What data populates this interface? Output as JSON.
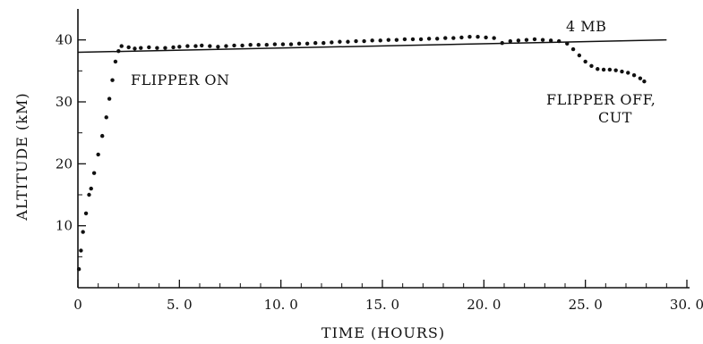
{
  "chart_data": {
    "type": "scatter",
    "title": "",
    "xlabel": "TIME (HOURS)",
    "ylabel": "ALTITUDE (kM)",
    "xlim": [
      0,
      30
    ],
    "ylim": [
      0,
      45
    ],
    "x_ticks": [
      0,
      5,
      10,
      15,
      20,
      25,
      30
    ],
    "x_tick_labels": [
      "0",
      "5. 0",
      "10. 0",
      "15. 0",
      "20. 0",
      "25. 0",
      "30. 0"
    ],
    "y_ticks": [
      10,
      20,
      30,
      40
    ],
    "y_tick_labels": [
      "10",
      "20",
      "30",
      "40"
    ],
    "grid": false,
    "series": [
      {
        "values": [
          [
            0.05,
            3
          ],
          [
            0.15,
            6
          ],
          [
            0.25,
            9
          ],
          [
            0.4,
            12
          ],
          [
            0.55,
            15
          ],
          [
            0.65,
            16
          ],
          [
            0.8,
            18.5
          ],
          [
            1.0,
            21.5
          ],
          [
            1.2,
            24.5
          ],
          [
            1.4,
            27.5
          ],
          [
            1.55,
            30.5
          ],
          [
            1.7,
            33.5
          ],
          [
            1.85,
            36.5
          ],
          [
            2.0,
            38.2
          ],
          [
            2.15,
            39.0
          ],
          [
            2.5,
            38.8
          ],
          [
            2.8,
            38.6
          ],
          [
            3.1,
            38.7
          ],
          [
            3.5,
            38.8
          ],
          [
            3.9,
            38.7
          ],
          [
            4.3,
            38.7
          ],
          [
            4.7,
            38.8
          ],
          [
            5.0,
            38.9
          ],
          [
            5.4,
            39.0
          ],
          [
            5.8,
            39.0
          ],
          [
            6.1,
            39.1
          ],
          [
            6.5,
            39.0
          ],
          [
            6.9,
            38.9
          ],
          [
            7.3,
            39.0
          ],
          [
            7.7,
            39.1
          ],
          [
            8.1,
            39.1
          ],
          [
            8.5,
            39.2
          ],
          [
            8.9,
            39.2
          ],
          [
            9.3,
            39.2
          ],
          [
            9.7,
            39.3
          ],
          [
            10.1,
            39.3
          ],
          [
            10.5,
            39.3
          ],
          [
            10.9,
            39.4
          ],
          [
            11.3,
            39.4
          ],
          [
            11.7,
            39.5
          ],
          [
            12.1,
            39.5
          ],
          [
            12.5,
            39.6
          ],
          [
            12.9,
            39.7
          ],
          [
            13.3,
            39.7
          ],
          [
            13.7,
            39.8
          ],
          [
            14.1,
            39.8
          ],
          [
            14.5,
            39.9
          ],
          [
            14.9,
            39.9
          ],
          [
            15.3,
            40.0
          ],
          [
            15.7,
            40.0
          ],
          [
            16.1,
            40.1
          ],
          [
            16.5,
            40.1
          ],
          [
            16.9,
            40.1
          ],
          [
            17.3,
            40.2
          ],
          [
            17.7,
            40.2
          ],
          [
            18.1,
            40.3
          ],
          [
            18.5,
            40.3
          ],
          [
            18.9,
            40.4
          ],
          [
            19.3,
            40.5
          ],
          [
            19.7,
            40.5
          ],
          [
            20.1,
            40.4
          ],
          [
            20.5,
            40.3
          ],
          [
            20.9,
            39.5
          ],
          [
            21.3,
            39.8
          ],
          [
            21.7,
            39.9
          ],
          [
            22.1,
            40.0
          ],
          [
            22.5,
            40.1
          ],
          [
            22.9,
            40.0
          ],
          [
            23.3,
            39.9
          ],
          [
            23.7,
            39.8
          ],
          [
            24.1,
            39.4
          ],
          [
            24.4,
            38.5
          ],
          [
            24.7,
            37.5
          ],
          [
            25.0,
            36.5
          ],
          [
            25.3,
            35.8
          ],
          [
            25.6,
            35.3
          ],
          [
            25.9,
            35.2
          ],
          [
            26.2,
            35.2
          ],
          [
            26.5,
            35.1
          ],
          [
            26.8,
            34.9
          ],
          [
            27.1,
            34.7
          ],
          [
            27.4,
            34.3
          ],
          [
            27.7,
            33.8
          ],
          [
            27.9,
            33.3
          ]
        ]
      }
    ],
    "reference_line": {
      "label": "4 MB",
      "from": [
        0,
        38
      ],
      "to": [
        29,
        40
      ]
    },
    "annotations": [
      {
        "id": "flipper-on",
        "lines": [
          "FLIPPER ON"
        ]
      },
      {
        "id": "flipper-off",
        "lines": [
          "FLIPPER OFF,",
          "CUT"
        ]
      }
    ]
  }
}
